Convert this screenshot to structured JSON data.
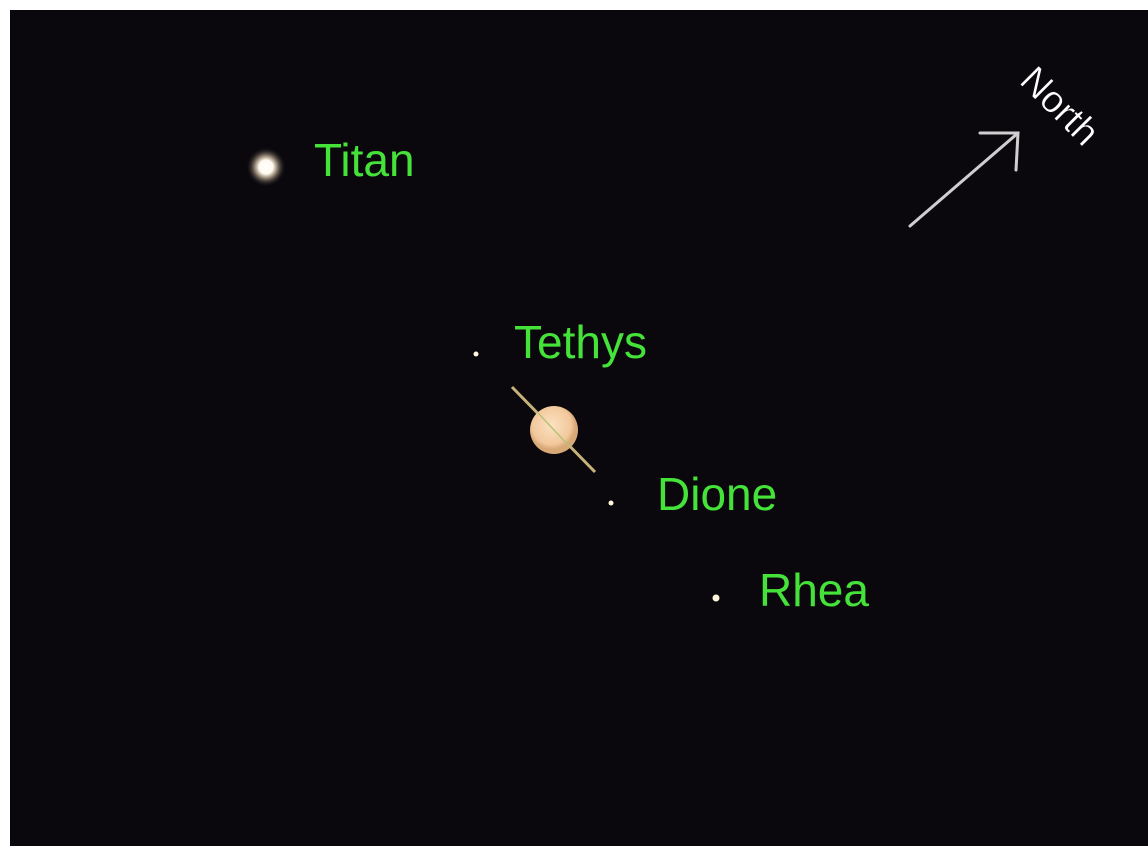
{
  "moons": [
    {
      "name": "Titan"
    },
    {
      "name": "Tethys"
    },
    {
      "name": "Dione"
    },
    {
      "name": "Rhea"
    }
  ],
  "direction": "North"
}
